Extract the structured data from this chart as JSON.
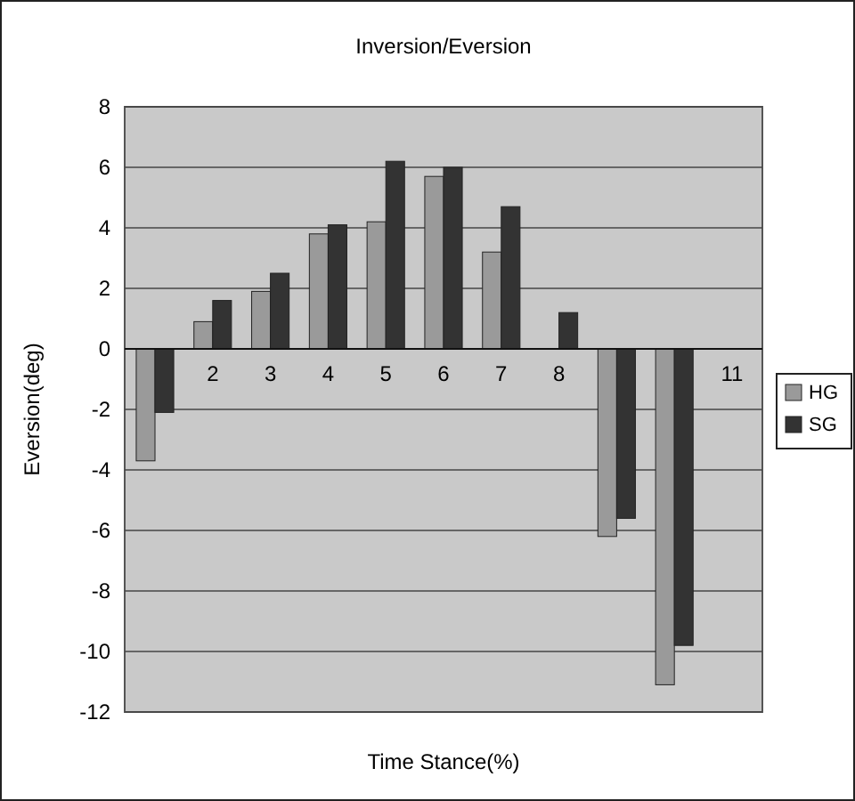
{
  "chart_data": {
    "type": "bar",
    "title": "Inversion/Eversion",
    "xlabel": "Time Stance(%)",
    "ylabel": "Eversion(deg)",
    "categories": [
      null,
      "2",
      "3",
      "4",
      "5",
      "6",
      "7",
      "8",
      null,
      null,
      "11"
    ],
    "series": [
      {
        "name": "HG",
        "color": "#9a9a9a",
        "values": [
          -3.7,
          0.9,
          1.9,
          3.8,
          4.2,
          5.7,
          3.2,
          null,
          -6.2,
          -11.1,
          null
        ]
      },
      {
        "name": "SG",
        "color": "#333333",
        "values": [
          -2.1,
          1.6,
          2.5,
          4.1,
          6.2,
          6.0,
          4.7,
          1.2,
          -5.6,
          -9.8,
          null
        ]
      }
    ],
    "ylim": [
      -12,
      8
    ],
    "yticks": [
      -12,
      -10,
      -8,
      -6,
      -4,
      -2,
      0,
      2,
      4,
      6,
      8
    ],
    "grid": "y",
    "legend": "right"
  }
}
